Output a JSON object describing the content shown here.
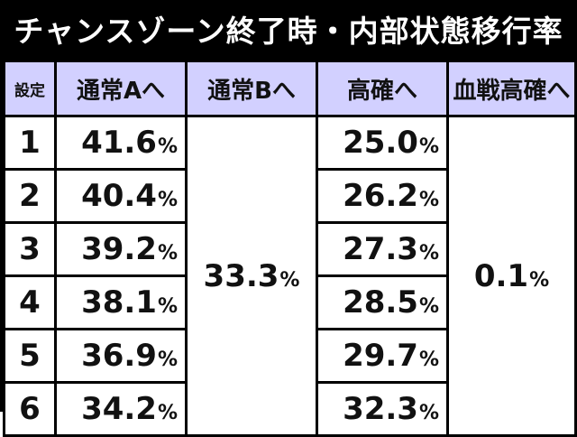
{
  "title": "チャンスゾーン終了時・内部状態移行率",
  "columns": {
    "setting": "設定",
    "normal_a": "通常Aへ",
    "normal_b": "通常Bへ",
    "high": "高確へ",
    "blood_high": "血戦高確へ"
  },
  "unit": "%",
  "rows": [
    {
      "setting": "1",
      "normal_a": "41.6",
      "high": "25.0"
    },
    {
      "setting": "2",
      "normal_a": "40.4",
      "high": "26.2"
    },
    {
      "setting": "3",
      "normal_a": "39.2",
      "high": "27.3"
    },
    {
      "setting": "4",
      "normal_a": "38.1",
      "high": "28.5"
    },
    {
      "setting": "5",
      "normal_a": "36.9",
      "high": "29.7"
    },
    {
      "setting": "6",
      "normal_a": "34.2",
      "high": "32.3"
    }
  ],
  "merged": {
    "normal_b": "33.3",
    "blood_high": "0.1"
  },
  "colors": {
    "header_bg": "#d2d0ff",
    "title_bg": "#000000",
    "title_text": "#ffffff"
  }
}
